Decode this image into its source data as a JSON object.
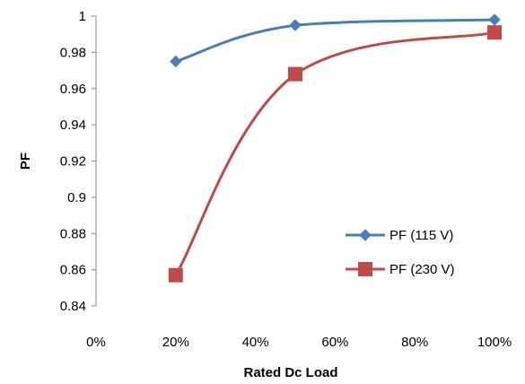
{
  "chart_data": {
    "type": "line",
    "xlabel": "Rated Dc Load",
    "ylabel": "PF",
    "xlim": [
      0,
      100
    ],
    "ylim": [
      0.84,
      1.0
    ],
    "x_ticks": [
      0,
      20,
      40,
      60,
      80,
      100
    ],
    "x_tick_labels": [
      "0%",
      "20%",
      "40%",
      "60%",
      "80%",
      "100%"
    ],
    "y_ticks": [
      0.84,
      0.86,
      0.88,
      0.9,
      0.92,
      0.94,
      0.96,
      0.98,
      1.0
    ],
    "y_tick_labels": [
      "0.84",
      "0.86",
      "0.88",
      "0.9",
      "0.92",
      "0.94",
      "0.96",
      "0.98",
      "1"
    ],
    "grid": false,
    "legend_position": "right-bottom",
    "series": [
      {
        "name": "PF (115 V)",
        "x": [
          20,
          50,
          100
        ],
        "values": [
          0.975,
          0.995,
          0.998
        ],
        "color": "#4A7EBB",
        "marker": "diamond"
      },
      {
        "name": "PF (230 V)",
        "x": [
          20,
          50,
          100
        ],
        "values": [
          0.857,
          0.968,
          0.991
        ],
        "color": "#BE4B48",
        "marker": "square"
      }
    ]
  }
}
